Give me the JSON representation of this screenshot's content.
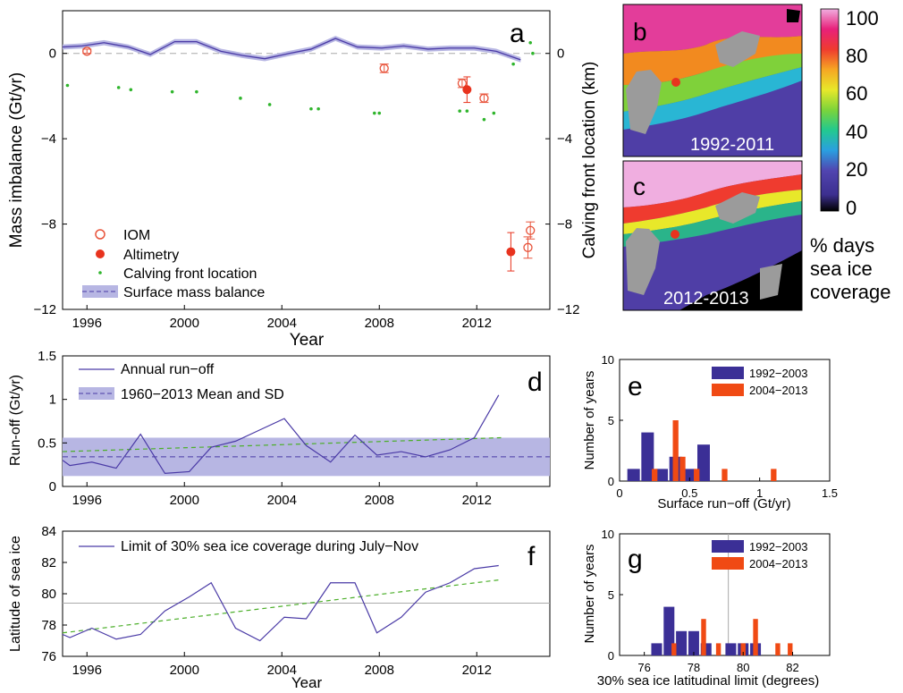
{
  "colors": {
    "runoff_line": "#4a3aa6",
    "smb_band": "#b7b6e3",
    "trend": "#4caf2a",
    "iom": "#e8533a",
    "alt": "#e8331e",
    "calving": "#2fb52c",
    "bar_early": "#3b2f96",
    "bar_late": "#f04a14",
    "zero": "#a8a8a8"
  },
  "panel_a": {
    "letter": "a",
    "ylabel": "Mass imbalance (Gt/yr)",
    "y2label": "Calving front location (km)",
    "xlabel": "Year",
    "xticks": [
      "1996",
      "2000",
      "2004",
      "2008",
      "2012"
    ],
    "yticks": [
      "0",
      "−4",
      "−8",
      "−12"
    ],
    "y2ticks": [
      "0",
      "−4",
      "−8",
      "−12"
    ],
    "legend": [
      "IOM",
      "Altimetry",
      "Calving front location",
      "Surface mass balance"
    ]
  },
  "map_b": {
    "letter": "b",
    "period": "1992-2011"
  },
  "map_c": {
    "letter": "c",
    "period": "2012-2013"
  },
  "colorbar": {
    "ticks": [
      "100",
      "80",
      "60",
      "40",
      "20",
      "0"
    ],
    "label": [
      "% days",
      "sea ice",
      "coverage"
    ]
  },
  "panel_d": {
    "letter": "d",
    "ylabel": "Run-off (Gt/yr)",
    "xticks": [
      "1996",
      "2000",
      "2004",
      "2008",
      "2012"
    ],
    "yticks": [
      "1.5",
      "1",
      "0.5",
      "0"
    ],
    "legend": [
      "Annual run−off",
      "1960−2013 Mean and SD"
    ]
  },
  "panel_e": {
    "letter": "e",
    "ylabel": "Number of years",
    "xlabel": "Surface run−off (Gt/yr)",
    "xticks": [
      "0",
      "0.5",
      "1",
      "1.5"
    ],
    "yticks": [
      "10",
      "5",
      "0"
    ],
    "legend": [
      "1992−2003",
      "2004−2013"
    ]
  },
  "panel_f": {
    "letter": "f",
    "ylabel": "Latitude of sea ice",
    "xlabel": "Year",
    "xticks": [
      "1996",
      "2000",
      "2004",
      "2008",
      "2012"
    ],
    "yticks": [
      "84",
      "82",
      "80",
      "78",
      "76"
    ],
    "legend": [
      "Limit of 30% sea ice coverage during July−Nov"
    ]
  },
  "panel_g": {
    "letter": "g",
    "ylabel": "Number of years",
    "xlabel": "30% sea ice latitudinal limit (degrees)",
    "xticks": [
      "76",
      "78",
      "80",
      "82"
    ],
    "yticks": [
      "10",
      "5",
      "0"
    ],
    "legend": [
      "1992−2003",
      "2004−2013"
    ]
  },
  "chart_data": [
    {
      "id": "a",
      "type": "line",
      "xlim": [
        1995,
        2015
      ],
      "ylim": [
        -12,
        2
      ],
      "series": [
        {
          "name": "Surface mass balance",
          "x": [
            1995,
            1995.8,
            1996.7,
            1997.7,
            1998.6,
            1999.6,
            2000.5,
            2001.5,
            2002.4,
            2003.3,
            2004.3,
            2005.2,
            2006.2,
            2007.1,
            2008.1,
            2009,
            2010,
            2010.9,
            2011.9,
            2012.8,
            2013.8
          ],
          "values": [
            0.3,
            0.35,
            0.5,
            0.3,
            -0.05,
            0.55,
            0.55,
            0.1,
            -0.1,
            -0.25,
            0.0,
            0.2,
            0.7,
            0.3,
            0.25,
            0.35,
            0.2,
            0.25,
            0.25,
            0.1,
            -0.3
          ]
        },
        {
          "name": "IOM",
          "x": [
            1996,
            2008.2,
            2011.4,
            2012.3,
            2014.1,
            2014.2
          ],
          "values": [
            0.1,
            -0.7,
            -1.4,
            -2.1,
            -9.1,
            -8.3
          ],
          "err": [
            0.1,
            0.2,
            0.2,
            0.2,
            0.5,
            0.4
          ]
        },
        {
          "name": "Altimetry",
          "x": [
            2011.6,
            2013.4
          ],
          "values": [
            -1.7,
            -9.3
          ],
          "err": [
            0.6,
            0.9
          ]
        },
        {
          "name": "Calving front location",
          "x": [
            1995.2,
            1997.3,
            1997.8,
            1999.5,
            2000.5,
            2002.3,
            2003.5,
            2005.2,
            2005.5,
            2007.8,
            2008,
            2011.3,
            2011.6,
            2012.3,
            2012.7,
            2013.5,
            2014.2,
            2014.3
          ],
          "values": [
            -1.5,
            -1.6,
            -1.7,
            -1.8,
            -1.8,
            -2.1,
            -2.4,
            -2.6,
            -2.6,
            -2.8,
            -2.8,
            -2.7,
            -2.7,
            -3.1,
            -2.8,
            -0.5,
            0.5,
            0.0
          ]
        }
      ]
    },
    {
      "id": "d",
      "type": "line",
      "xlim": [
        1995,
        2015
      ],
      "ylim": [
        0,
        1.5
      ],
      "series": [
        {
          "name": "Annual run−off",
          "x": [
            1995,
            1995.3,
            1996.2,
            1997.2,
            1998.2,
            1999.2,
            2000.2,
            2001.1,
            2002.1,
            2003.1,
            2004.1,
            2005,
            2006,
            2007,
            2007.9,
            2008.9,
            2009.9,
            2010.9,
            2011.9,
            2012.9
          ],
          "values": [
            0.3,
            0.24,
            0.28,
            0.21,
            0.6,
            0.15,
            0.17,
            0.45,
            0.52,
            0.65,
            0.78,
            0.47,
            0.28,
            0.59,
            0.36,
            0.4,
            0.34,
            0.42,
            0.56,
            1.05
          ]
        },
        {
          "name": "1960−2013 Mean and SD",
          "mean": 0.34,
          "sd": 0.22
        },
        {
          "name": "trend",
          "x": [
            1995,
            2013
          ],
          "values": [
            0.4,
            0.56
          ]
        }
      ]
    },
    {
      "id": "e",
      "type": "bar",
      "xlim": [
        0,
        1.5
      ],
      "ylim": [
        0,
        10
      ],
      "series": [
        {
          "name": "1992−2003",
          "x": [
            0.1,
            0.2,
            0.3,
            0.4,
            0.5,
            0.6
          ],
          "values": [
            1,
            4,
            1,
            2,
            1,
            3
          ]
        },
        {
          "name": "2004−2013",
          "x": [
            0.25,
            0.4,
            0.45,
            0.55,
            0.75,
            1.1
          ],
          "values": [
            1,
            5,
            2,
            1,
            1,
            1
          ]
        }
      ]
    },
    {
      "id": "f",
      "type": "line",
      "xlim": [
        1995,
        2015
      ],
      "ylim": [
        76,
        84
      ],
      "series": [
        {
          "name": "Limit of 30% sea ice coverage during July−Nov",
          "x": [
            1995,
            1995.3,
            1996.2,
            1997.2,
            1998.2,
            1999.2,
            2000.2,
            2001.1,
            2002.1,
            2003.1,
            2004.1,
            2005,
            2006,
            2007,
            2007.9,
            2008.9,
            2009.9,
            2010.9,
            2011.9,
            2012.9
          ],
          "values": [
            77.4,
            77.2,
            77.8,
            77.1,
            77.4,
            78.9,
            79.8,
            80.7,
            77.8,
            77.0,
            78.5,
            78.4,
            80.7,
            80.7,
            77.5,
            78.5,
            80.1,
            80.7,
            81.6,
            81.8
          ]
        },
        {
          "name": "mean",
          "values": [
            79.4
          ]
        },
        {
          "name": "trend",
          "x": [
            1995,
            2013
          ],
          "values": [
            77.5,
            80.9
          ]
        }
      ]
    },
    {
      "id": "g",
      "type": "bar",
      "xlim": [
        75,
        83.5
      ],
      "ylim": [
        0,
        10
      ],
      "series": [
        {
          "name": "1992−2003",
          "x": [
            76.5,
            77,
            77.5,
            78,
            78.5,
            79.5,
            80,
            80.5
          ],
          "values": [
            1,
            4,
            2,
            2,
            1,
            1,
            1,
            1
          ]
        },
        {
          "name": "2004−2013",
          "x": [
            77.2,
            78.4,
            79.0,
            80.0,
            80.5,
            81.4,
            81.9
          ],
          "values": [
            1,
            3,
            1,
            1,
            3,
            1,
            1
          ]
        }
      ]
    }
  ]
}
